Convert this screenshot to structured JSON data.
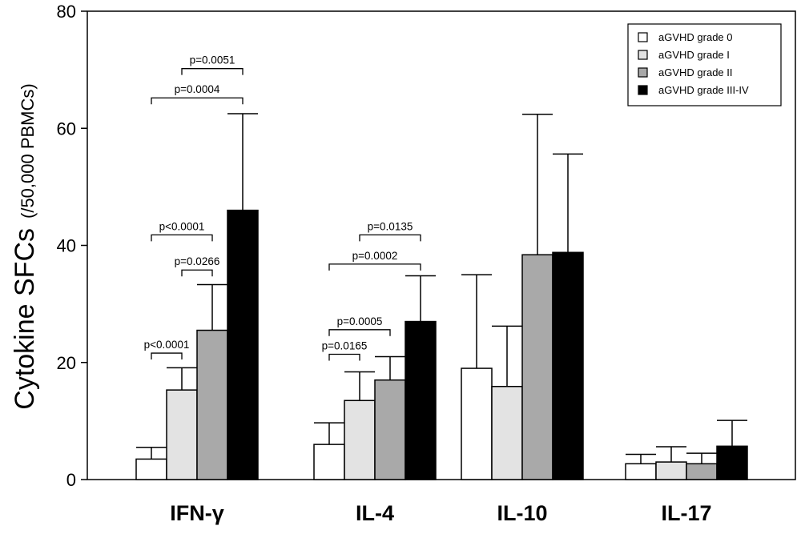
{
  "chart_data": {
    "type": "bar",
    "title": "",
    "xlabel": "",
    "ylabel": "Cytokine SFCs",
    "ylabel_unit": "(/50,000 PBMCs)",
    "ylim": [
      0,
      80
    ],
    "yticks": [
      "0",
      "20",
      "40",
      "60",
      "80"
    ],
    "categories": [
      "IFN-γ",
      "IL-4",
      "IL-10",
      "IL-17"
    ],
    "series": [
      {
        "name": "aGVHD grade 0",
        "color": "#ffffff",
        "values": [
          3.5,
          6.0,
          19.0,
          2.7
        ],
        "errors": [
          2.0,
          3.7,
          16.0,
          1.6
        ]
      },
      {
        "name": "aGVHD grade I",
        "color": "#e3e3e3",
        "values": [
          15.3,
          13.5,
          15.9,
          3.0
        ],
        "errors": [
          3.8,
          4.9,
          10.3,
          2.6
        ]
      },
      {
        "name": "aGVHD grade II",
        "color": "#a9a9a9",
        "values": [
          25.5,
          17.0,
          38.4,
          2.7
        ],
        "errors": [
          7.8,
          4.0,
          24.0,
          1.8
        ]
      },
      {
        "name": "aGVHD grade III-IV",
        "color": "#000000",
        "values": [
          46.0,
          27.0,
          38.8,
          5.7
        ],
        "errors": [
          16.5,
          7.8,
          16.8,
          4.4
        ]
      }
    ],
    "legend_position": "top-right",
    "annotations": [
      {
        "category": 0,
        "from": 0,
        "to": 1,
        "y": 21.6,
        "text": "p<0.0001"
      },
      {
        "category": 0,
        "from": 1,
        "to": 2,
        "y": 35.8,
        "text": "p=0.0266"
      },
      {
        "category": 0,
        "from": 0,
        "to": 2,
        "y": 41.8,
        "text": "p<0.0001"
      },
      {
        "category": 0,
        "from": 0,
        "to": 3,
        "y": 65.2,
        "text": "p=0.0004"
      },
      {
        "category": 0,
        "from": 1,
        "to": 3,
        "y": 70.2,
        "text": "p=0.0051"
      },
      {
        "category": 1,
        "from": 0,
        "to": 1,
        "y": 21.4,
        "text": "p=0.0165"
      },
      {
        "category": 1,
        "from": 0,
        "to": 2,
        "y": 25.6,
        "text": "p=0.0005"
      },
      {
        "category": 1,
        "from": 0,
        "to": 3,
        "y": 36.8,
        "text": "p=0.0002"
      },
      {
        "category": 1,
        "from": 1,
        "to": 3,
        "y": 41.8,
        "text": "p=0.0135"
      }
    ]
  }
}
